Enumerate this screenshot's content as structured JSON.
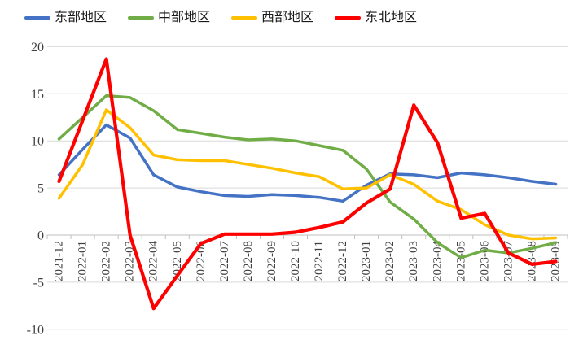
{
  "chart_data": {
    "type": "line",
    "title": "",
    "xlabel": "",
    "ylabel": "",
    "categories": [
      "2021-12",
      "2022-01",
      "2022-02",
      "2022-03",
      "2022-04",
      "2022-05",
      "2022-06",
      "2022-07",
      "2022-08",
      "2022-09",
      "2022-10",
      "2022-11",
      "2022-12",
      "2023-01",
      "2023-02",
      "2023-03",
      "2023-04",
      "2023-05",
      "2023-06",
      "2023-07",
      "2023-08",
      "2023-09"
    ],
    "series": [
      {
        "name": "东部地区",
        "color": "#4472C4",
        "values": [
          6.4,
          9.1,
          11.7,
          10.3,
          6.4,
          5.1,
          4.6,
          4.2,
          4.1,
          4.3,
          4.2,
          4.0,
          3.6,
          5.3,
          6.5,
          6.4,
          6.1,
          6.6,
          6.4,
          6.1,
          5.7,
          5.4
        ]
      },
      {
        "name": "中部地区",
        "color": "#70AD47",
        "values": [
          10.2,
          12.5,
          14.8,
          14.6,
          13.2,
          11.2,
          10.8,
          10.4,
          10.1,
          10.2,
          10.0,
          9.5,
          9.0,
          7.0,
          3.5,
          1.7,
          -0.8,
          -2.4,
          -1.6,
          -1.9,
          -1.4,
          -0.8
        ]
      },
      {
        "name": "西部地区",
        "color": "#FFC000",
        "values": [
          3.9,
          7.5,
          13.3,
          11.4,
          8.5,
          8.0,
          7.9,
          7.9,
          7.5,
          7.1,
          6.6,
          6.2,
          4.9,
          5.0,
          6.4,
          5.4,
          3.6,
          2.7,
          1.1,
          0.0,
          -0.4,
          -0.3
        ]
      },
      {
        "name": "东北地区",
        "color": "#FF0000",
        "values": [
          5.7,
          12.2,
          18.7,
          0.0,
          -7.8,
          -4.3,
          -0.9,
          0.1,
          0.1,
          0.1,
          0.3,
          0.8,
          1.4,
          3.4,
          4.9,
          13.8,
          9.8,
          1.8,
          2.3,
          -1.9,
          -3.1,
          -2.8
        ]
      }
    ],
    "ylim": [
      -10,
      20
    ],
    "yticks": [
      20,
      15,
      10,
      5,
      0,
      -5,
      -10
    ],
    "grid": "horizontal",
    "legend_position": "top",
    "grid_color": "#D9D9D9",
    "axis_color": "#BFBFBF",
    "tick_label_color": "#404040"
  }
}
